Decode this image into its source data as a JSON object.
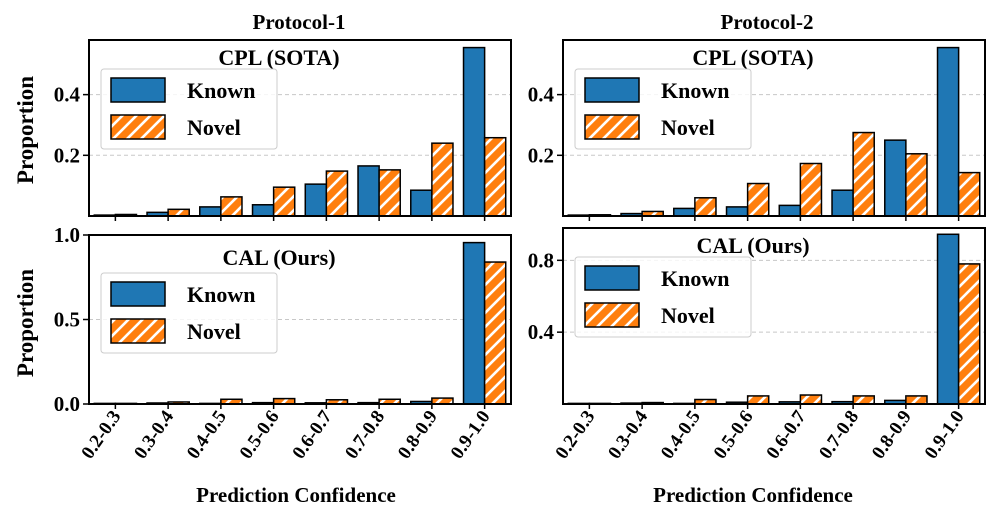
{
  "figure": {
    "xlabel": "Prediction Confidence",
    "ylabel": "Proportion",
    "colors": {
      "known": "#1f77b4",
      "novel": "#ff7f0e",
      "hatch": "#ffffff",
      "grid": "#c8c8c8"
    }
  },
  "chart_data": [
    {
      "type": "bar",
      "column_title": "Protocol-1",
      "title": "CPL  (SOTA)",
      "categories": [
        "0.2-0.3",
        "0.3-0.4",
        "0.4-0.5",
        "0.5-0.6",
        "0.6-0.7",
        "0.7-0.8",
        "0.8-0.9",
        "0.9-1.0"
      ],
      "series": [
        {
          "name": "Known",
          "values": [
            0.003,
            0.012,
            0.03,
            0.037,
            0.105,
            0.165,
            0.085,
            0.555
          ]
        },
        {
          "name": "Novel",
          "values": [
            0.005,
            0.022,
            0.063,
            0.095,
            0.148,
            0.152,
            0.24,
            0.258
          ]
        }
      ],
      "ylim": [
        0,
        0.58
      ],
      "yticks": [
        0.2,
        0.4
      ],
      "yticklabels": [
        "0.2",
        "0.4"
      ],
      "grid": true,
      "legend": "top-left"
    },
    {
      "type": "bar",
      "column_title": "Protocol-2",
      "title": "CPL (SOTA)",
      "categories": [
        "0.2-0.3",
        "0.3-0.4",
        "0.4-0.5",
        "0.5-0.6",
        "0.6-0.7",
        "0.7-0.8",
        "0.8-0.9",
        "0.9-1.0"
      ],
      "series": [
        {
          "name": "Known",
          "values": [
            0.003,
            0.008,
            0.025,
            0.03,
            0.035,
            0.085,
            0.25,
            0.555
          ]
        },
        {
          "name": "Novel",
          "values": [
            0.004,
            0.015,
            0.06,
            0.107,
            0.173,
            0.275,
            0.205,
            0.143
          ]
        }
      ],
      "ylim": [
        0,
        0.58
      ],
      "yticks": [
        0.2,
        0.4
      ],
      "yticklabels": [
        "0.2",
        "0.4"
      ],
      "grid": true,
      "legend": "top-left"
    },
    {
      "type": "bar",
      "column_title": "",
      "title": "CAL (Ours)",
      "categories": [
        "0.2-0.3",
        "0.3-0.4",
        "0.4-0.5",
        "0.5-0.6",
        "0.6-0.7",
        "0.7-0.8",
        "0.8-0.9",
        "0.9-1.0"
      ],
      "series": [
        {
          "name": "Known",
          "values": [
            0.002,
            0.006,
            0.003,
            0.008,
            0.007,
            0.008,
            0.015,
            0.955
          ]
        },
        {
          "name": "Novel",
          "values": [
            0.003,
            0.012,
            0.028,
            0.032,
            0.025,
            0.028,
            0.035,
            0.84
          ]
        }
      ],
      "ylim": [
        0,
        1.0
      ],
      "yticks": [
        0.0,
        0.5,
        1.0
      ],
      "yticklabels": [
        "0.0",
        "0.5",
        "1.0"
      ],
      "grid": true,
      "legend": "top-left"
    },
    {
      "type": "bar",
      "column_title": "",
      "title": "CAL (Ours)",
      "categories": [
        "0.2-0.3",
        "0.3-0.4",
        "0.4-0.5",
        "0.5-0.6",
        "0.6-0.7",
        "0.7-0.8",
        "0.8-0.9",
        "0.9-1.0"
      ],
      "series": [
        {
          "name": "Known",
          "values": [
            0.002,
            0.005,
            0.003,
            0.01,
            0.012,
            0.013,
            0.02,
            0.945
          ]
        },
        {
          "name": "Novel",
          "values": [
            0.003,
            0.008,
            0.025,
            0.045,
            0.05,
            0.045,
            0.045,
            0.78
          ]
        }
      ],
      "ylim": [
        0,
        0.98
      ],
      "yticks": [
        0.4,
        0.8
      ],
      "yticklabels": [
        "0.4",
        "0.8"
      ],
      "grid": true,
      "legend": "top-left"
    }
  ]
}
